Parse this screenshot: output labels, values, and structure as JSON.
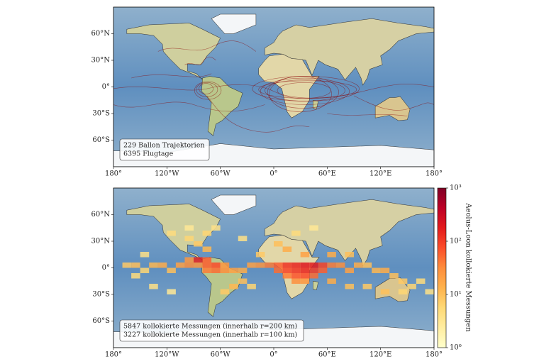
{
  "panels": [
    {
      "lon_ticks": [
        {
          "value": -180,
          "label": "180°"
        },
        {
          "value": -120,
          "label": "120°W"
        },
        {
          "value": -60,
          "label": "60°W"
        },
        {
          "value": 0,
          "label": "0°"
        },
        {
          "value": 60,
          "label": "60°E"
        },
        {
          "value": 120,
          "label": "120°E"
        },
        {
          "value": 180,
          "label": "180°"
        }
      ],
      "lat_ticks": [
        {
          "value": 60,
          "label": "60°N"
        },
        {
          "value": 30,
          "label": "30°N"
        },
        {
          "value": 0,
          "label": "0°"
        },
        {
          "value": -30,
          "label": "30°S"
        },
        {
          "value": -60,
          "label": "60°S"
        }
      ],
      "annotation": [
        "229 Ballon Trajektorien",
        "6395 Flugtage"
      ]
    },
    {
      "lon_ticks": [
        {
          "value": -180,
          "label": "180°"
        },
        {
          "value": -120,
          "label": "120°W"
        },
        {
          "value": -60,
          "label": "60°W"
        },
        {
          "value": 0,
          "label": "0°"
        },
        {
          "value": 60,
          "label": "60°E"
        },
        {
          "value": 120,
          "label": "120°E"
        },
        {
          "value": 180,
          "label": "180°"
        }
      ],
      "lat_ticks": [
        {
          "value": 60,
          "label": "60°N"
        },
        {
          "value": 30,
          "label": "30°N"
        },
        {
          "value": 0,
          "label": "0°"
        },
        {
          "value": -30,
          "label": "30°S"
        },
        {
          "value": -60,
          "label": "60°S"
        }
      ],
      "annotation": [
        "5847 kollokierte Messungen (innerhalb r=200 km)",
        "3227 kollokierte Messungen (innerhalb r=100 km)"
      ],
      "cells": [
        [
          -170,
          0,
          8
        ],
        [
          -160,
          0,
          10
        ],
        [
          -150,
          -6,
          6
        ],
        [
          -140,
          0,
          12
        ],
        [
          -130,
          0,
          15
        ],
        [
          -120,
          -6,
          10
        ],
        [
          -110,
          0,
          20
        ],
        [
          -100,
          0,
          30
        ],
        [
          -90,
          0,
          25
        ],
        [
          -80,
          0,
          60
        ],
        [
          -80,
          -6,
          40
        ],
        [
          -70,
          0,
          80
        ],
        [
          -70,
          -6,
          50
        ],
        [
          -60,
          -6,
          30
        ],
        [
          -60,
          0,
          25
        ],
        [
          -50,
          -6,
          20
        ],
        [
          -40,
          -6,
          15
        ],
        [
          -30,
          0,
          20
        ],
        [
          -20,
          0,
          25
        ],
        [
          -10,
          0,
          40
        ],
        [
          0,
          0,
          60
        ],
        [
          10,
          0,
          120
        ],
        [
          20,
          0,
          150
        ],
        [
          30,
          0,
          200
        ],
        [
          40,
          0,
          180
        ],
        [
          50,
          0,
          90
        ],
        [
          60,
          0,
          40
        ],
        [
          70,
          0,
          30
        ],
        [
          80,
          -6,
          20
        ],
        [
          90,
          0,
          15
        ],
        [
          100,
          0,
          10
        ],
        [
          110,
          -6,
          12
        ],
        [
          120,
          -6,
          15
        ],
        [
          130,
          -12,
          10
        ],
        [
          140,
          -18,
          8
        ],
        [
          150,
          -24,
          6
        ],
        [
          160,
          -18,
          5
        ],
        [
          0,
          -6,
          50
        ],
        [
          10,
          -6,
          90
        ],
        [
          20,
          -6,
          120
        ],
        [
          30,
          -6,
          150
        ],
        [
          40,
          -6,
          100
        ],
        [
          50,
          -6,
          60
        ],
        [
          10,
          -12,
          40
        ],
        [
          20,
          -12,
          70
        ],
        [
          30,
          -12,
          80
        ],
        [
          40,
          -12,
          50
        ],
        [
          20,
          -18,
          30
        ],
        [
          30,
          -18,
          25
        ],
        [
          -90,
          6,
          150
        ],
        [
          -80,
          6,
          60
        ],
        [
          -100,
          6,
          25
        ],
        [
          -80,
          18,
          12
        ],
        [
          -90,
          24,
          8
        ],
        [
          -100,
          30,
          6
        ],
        [
          -120,
          36,
          5
        ],
        [
          -80,
          36,
          6
        ],
        [
          -70,
          42,
          4
        ],
        [
          -100,
          42,
          3
        ],
        [
          0,
          24,
          10
        ],
        [
          10,
          18,
          15
        ],
        [
          30,
          12,
          20
        ],
        [
          60,
          12,
          15
        ],
        [
          80,
          12,
          10
        ],
        [
          -20,
          12,
          8
        ],
        [
          -40,
          -18,
          10
        ],
        [
          -50,
          -24,
          12
        ],
        [
          -60,
          -30,
          8
        ],
        [
          -30,
          -24,
          6
        ],
        [
          60,
          -18,
          15
        ],
        [
          80,
          -24,
          10
        ],
        [
          100,
          -24,
          8
        ],
        [
          120,
          -30,
          10
        ],
        [
          140,
          -30,
          6
        ],
        [
          170,
          -30,
          4
        ],
        [
          -140,
          -24,
          4
        ],
        [
          -120,
          -30,
          3
        ],
        [
          -160,
          -12,
          5
        ],
        [
          -150,
          12,
          4
        ],
        [
          -40,
          30,
          4
        ],
        [
          20,
          36,
          5
        ],
        [
          40,
          42,
          3
        ]
      ]
    }
  ],
  "colorbar": {
    "label": "Aeolus-Loon kollokierte Messungen",
    "log": true,
    "lim": [
      1,
      1000
    ],
    "ticks": [
      {
        "value": 1,
        "label": "10⁰"
      },
      {
        "value": 10,
        "label": "10¹"
      },
      {
        "value": 100,
        "label": "10²"
      },
      {
        "value": 1000,
        "label": "10³"
      }
    ]
  }
}
